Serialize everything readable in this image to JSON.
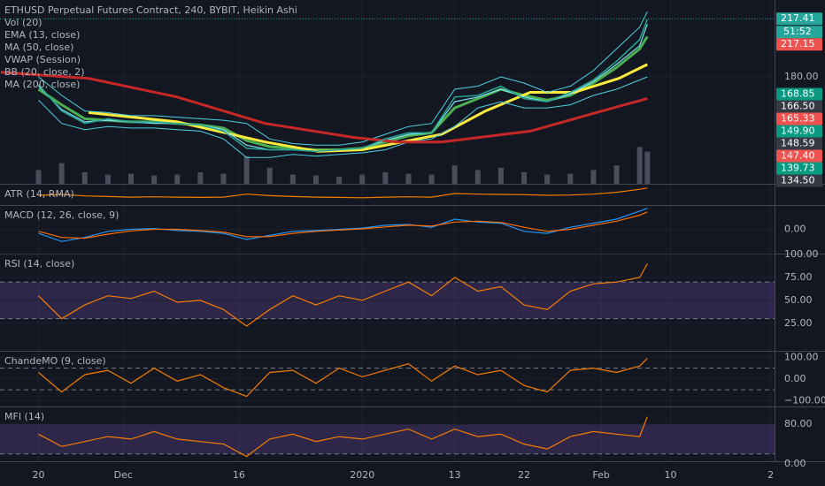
{
  "chart_data": [
    {
      "type": "line",
      "title": "ETHUSD Perpetual Futures Contract, 240, BYBIT, Heikin Ashi",
      "ylim": [
        111.1,
        229.5
      ],
      "yticks": [
        {
          "value": 180,
          "label": "180.00"
        }
      ],
      "y2lim": [
        0,
        400
      ],
      "countdown": "51:52",
      "price_labels": [
        {
          "value": 217.41,
          "color": "#26a69a"
        },
        {
          "value": 217.15,
          "color": "#ef5350"
        },
        {
          "value": 168.85,
          "color": "#089981"
        },
        {
          "value": 166.5,
          "label": "166.50",
          "color": "#363a45"
        },
        {
          "value": 165.33,
          "color": "#ef5350"
        },
        {
          "value": 149.9,
          "label": "149.90",
          "color": "#089981"
        },
        {
          "value": 148.59,
          "color": "#363a45"
        },
        {
          "value": 147.4,
          "label": "147.40",
          "color": "#ef5350"
        },
        {
          "value": 139.73,
          "color": "#089981"
        },
        {
          "value": 134.5,
          "label": "134.50",
          "color": "#363a45"
        }
      ],
      "price": {
        "color": "#26a69a",
        "x": [
          0,
          3,
          6,
          9,
          12,
          15,
          18,
          21,
          24,
          27,
          30,
          33,
          36,
          39,
          42,
          45,
          48,
          51,
          54,
          57,
          60,
          63,
          66,
          69,
          72,
          75,
          78,
          79
        ],
        "values": [
          175,
          158,
          150,
          153,
          151,
          151,
          150,
          149,
          145,
          134,
          133,
          133,
          132,
          133,
          134,
          140,
          144,
          144,
          167,
          168,
          174,
          166,
          164,
          170,
          178,
          190,
          204,
          217
        ]
      },
      "series": [
        {
          "name": "Vol (20)",
          "color": "#4a4e5a",
          "axis": "y2",
          "x": [
            0,
            3,
            6,
            9,
            12,
            15,
            18,
            21,
            24,
            27,
            30,
            33,
            36,
            39,
            42,
            45,
            48,
            51,
            54,
            57,
            60,
            63,
            66,
            69,
            72,
            75,
            78,
            79
          ],
          "values": [
            30,
            45,
            25,
            20,
            22,
            18,
            20,
            25,
            22,
            60,
            35,
            20,
            18,
            15,
            20,
            25,
            22,
            20,
            40,
            30,
            35,
            25,
            20,
            22,
            30,
            40,
            80,
            70
          ]
        },
        {
          "name": "EMA (13, close)",
          "color": "#4caf50",
          "x": [
            0,
            3,
            6,
            9,
            12,
            15,
            18,
            21,
            24,
            27,
            30,
            33,
            36,
            39,
            42,
            45,
            48,
            51,
            54,
            57,
            60,
            63,
            66,
            69,
            72,
            75,
            78,
            79
          ],
          "values": [
            172,
            162,
            153,
            152,
            151,
            151,
            150,
            149,
            147,
            139,
            135,
            134,
            133,
            133,
            134,
            138,
            142,
            144,
            160,
            166,
            172,
            168,
            165,
            168,
            176,
            186,
            198,
            206
          ]
        },
        {
          "name": "MA (50, close)",
          "color": "#ffeb3b",
          "x": [
            6.5,
            18,
            29.4,
            36.3,
            42,
            52.3,
            58,
            63.8,
            69.5,
            75.3,
            79
          ],
          "values": [
            157,
            151,
            138,
            132,
            133,
            143,
            158,
            170,
            170,
            179,
            188
          ]
        },
        {
          "name": "VWAP (Session)",
          "color": "#80deea",
          "x": [
            0,
            3,
            6,
            9,
            12,
            15,
            18,
            21,
            24,
            27,
            30,
            33,
            36,
            39,
            42,
            45,
            48,
            51,
            54,
            57,
            60,
            63,
            66,
            69,
            72,
            75,
            78,
            79
          ],
          "values": [
            174,
            159,
            151,
            152,
            151,
            150,
            150,
            149,
            146,
            136,
            133,
            133,
            132,
            133,
            134,
            139,
            143,
            144,
            164,
            167,
            172,
            167,
            164,
            169,
            177,
            188,
            200,
            214
          ]
        },
        {
          "name": "BB (20, close, 2)",
          "color": "#4dd0e1",
          "x": [
            0,
            3,
            6,
            9,
            12,
            15,
            18,
            21,
            24,
            27,
            30,
            33,
            36,
            39,
            42,
            45,
            48,
            51,
            54,
            57,
            60,
            63,
            66,
            69,
            72,
            75,
            78,
            79
          ],
          "upper": [
            180,
            168,
            158,
            157,
            155,
            155,
            154,
            153,
            152,
            150,
            140,
            137,
            136,
            136,
            138,
            143,
            148,
            150,
            172,
            174,
            180,
            176,
            170,
            174,
            184,
            198,
            212,
            222
          ],
          "lower": [
            165,
            150,
            146,
            148,
            147,
            147,
            146,
            145,
            140,
            128,
            128,
            130,
            129,
            130,
            131,
            133,
            138,
            140,
            148,
            160,
            164,
            160,
            160,
            162,
            168,
            172,
            178,
            180
          ]
        },
        {
          "name": "MA (200, close)",
          "color": "#c62828",
          "x": [
            -4.9,
            6.5,
            18,
            29.4,
            40.9,
            46.6,
            52.3,
            63.8,
            75.3,
            79
          ],
          "values": [
            183,
            179,
            167,
            150,
            141,
            138,
            138,
            145,
            161,
            166
          ]
        }
      ]
    },
    {
      "type": "line",
      "title": "ATR (14, RMA)",
      "ylim": [
        0,
        7
      ],
      "series": [
        {
          "color": "#f57c00",
          "x": [
            0,
            3,
            6,
            9,
            12,
            15,
            18,
            21,
            24,
            27,
            30,
            33,
            36,
            39,
            42,
            45,
            48,
            51,
            54,
            57,
            60,
            63,
            66,
            69,
            72,
            75,
            78,
            79
          ],
          "values": [
            3.2,
            3.5,
            3.0,
            2.8,
            2.6,
            2.7,
            2.6,
            2.5,
            2.6,
            3.6,
            3.1,
            2.8,
            2.6,
            2.5,
            2.4,
            2.6,
            2.7,
            2.6,
            3.8,
            3.6,
            3.5,
            3.4,
            3.2,
            3.3,
            3.6,
            4.2,
            5.2,
            5.6
          ]
        }
      ]
    },
    {
      "type": "line",
      "title": "MACD (12, 26, close, 9)",
      "ylim": [
        -6,
        6
      ],
      "yticks": [
        {
          "value": 0,
          "label": "0.00"
        }
      ],
      "series": [
        {
          "color": "#2196f3",
          "x": [
            0,
            3,
            6,
            9,
            12,
            15,
            18,
            21,
            24,
            27,
            30,
            33,
            36,
            39,
            42,
            45,
            48,
            51,
            54,
            57,
            60,
            63,
            66,
            69,
            72,
            75,
            78,
            79
          ],
          "values": [
            -1,
            -3,
            -2,
            -0.5,
            0,
            0.2,
            -0.3,
            -0.5,
            -1,
            -2.5,
            -1.5,
            -0.5,
            -0.3,
            0,
            0.3,
            1,
            1.2,
            0.5,
            2.5,
            1.8,
            1.5,
            -0.5,
            -1,
            0.5,
            1.5,
            2.5,
            4.5,
            5.2
          ]
        },
        {
          "color": "#ff6d00",
          "x": [
            0,
            3,
            6,
            9,
            12,
            15,
            18,
            21,
            24,
            27,
            30,
            33,
            36,
            39,
            42,
            45,
            48,
            51,
            54,
            57,
            60,
            63,
            66,
            69,
            72,
            75,
            78,
            79
          ],
          "values": [
            -0.5,
            -2,
            -2.2,
            -1.2,
            -0.4,
            0,
            0,
            -0.3,
            -0.7,
            -1.8,
            -1.8,
            -1,
            -0.5,
            -0.2,
            0.1,
            0.6,
            1,
            0.8,
            1.8,
            2,
            1.7,
            0.5,
            -0.5,
            0,
            1,
            2,
            3.5,
            4.3
          ]
        }
      ]
    },
    {
      "type": "line",
      "title": "RSI (14, close)",
      "ylim": [
        -5,
        101
      ],
      "yticks": [
        {
          "value": 100,
          "label": "100.00"
        },
        {
          "value": 75,
          "label": "75.00"
        },
        {
          "value": 50,
          "label": "50.00"
        },
        {
          "value": 25,
          "label": "25.00"
        }
      ],
      "band": [
        30,
        70
      ],
      "band_color": "#7e57c2",
      "series": [
        {
          "color": "#f57c00",
          "x": [
            0,
            3,
            6,
            9,
            12,
            15,
            18,
            21,
            24,
            27,
            30,
            33,
            36,
            39,
            42,
            45,
            48,
            51,
            54,
            57,
            60,
            63,
            66,
            69,
            72,
            75,
            78,
            79
          ],
          "values": [
            55,
            30,
            45,
            55,
            52,
            60,
            48,
            50,
            40,
            22,
            40,
            55,
            45,
            55,
            50,
            60,
            70,
            55,
            75,
            60,
            65,
            45,
            40,
            60,
            68,
            70,
            75,
            90
          ]
        }
      ]
    },
    {
      "type": "line",
      "title": "ChandeMO (9, close)",
      "ylim": [
        -127,
        130
      ],
      "yticks": [
        {
          "value": 100,
          "label": "100.00"
        },
        {
          "value": 0,
          "label": "0.00"
        },
        {
          "value": -100,
          "label": "−100.00"
        }
      ],
      "levels": [
        50,
        -50
      ],
      "series": [
        {
          "color": "#f57c00",
          "x": [
            0,
            3,
            6,
            9,
            12,
            15,
            18,
            21,
            24,
            27,
            30,
            33,
            36,
            39,
            42,
            45,
            48,
            51,
            54,
            57,
            60,
            63,
            66,
            69,
            72,
            75,
            78,
            79
          ],
          "values": [
            30,
            -60,
            20,
            40,
            -20,
            50,
            -10,
            20,
            -40,
            -80,
            30,
            40,
            -20,
            50,
            10,
            40,
            70,
            -10,
            60,
            20,
            40,
            -30,
            -60,
            40,
            50,
            30,
            60,
            95
          ]
        }
      ]
    },
    {
      "type": "line",
      "title": "MFI (14)",
      "ylim": [
        5.3,
        115.6
      ],
      "yticks": [
        {
          "value": 80,
          "label": "80.00"
        },
        {
          "value": 0,
          "label": "0.00"
        }
      ],
      "band": [
        20,
        80
      ],
      "band_color": "#7e57c2",
      "xlim": [
        -5,
        95.5
      ],
      "xticks": [
        {
          "value": 0,
          "label": "20"
        },
        {
          "value": 11,
          "label": "Dec"
        },
        {
          "value": 26,
          "label": "16"
        },
        {
          "value": 42,
          "label": "2020"
        },
        {
          "value": 54,
          "label": "13"
        },
        {
          "value": 63,
          "label": "22"
        },
        {
          "value": 73,
          "label": "Feb"
        },
        {
          "value": 82,
          "label": "10"
        },
        {
          "value": 95,
          "label": "2"
        }
      ],
      "series": [
        {
          "color": "#f57c00",
          "x": [
            0,
            3,
            6,
            9,
            12,
            15,
            18,
            21,
            24,
            27,
            30,
            33,
            36,
            39,
            42,
            45,
            48,
            51,
            54,
            57,
            60,
            63,
            66,
            69,
            72,
            75,
            78,
            79
          ],
          "values": [
            60,
            35,
            45,
            55,
            50,
            65,
            50,
            45,
            40,
            15,
            50,
            60,
            45,
            55,
            50,
            60,
            70,
            50,
            70,
            55,
            60,
            40,
            30,
            55,
            65,
            60,
            55,
            95
          ]
        }
      ]
    }
  ]
}
